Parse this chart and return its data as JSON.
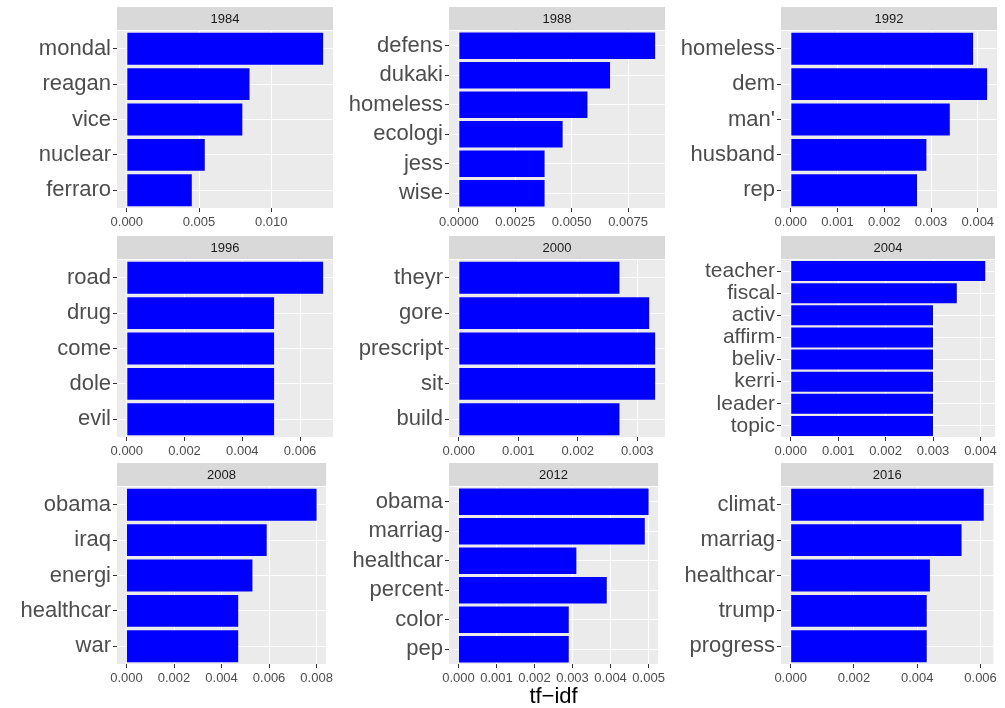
{
  "chart_data": [
    {
      "type": "bar",
      "orientation": "horizontal",
      "title": "1984",
      "categories": [
        "mondal",
        "reagan",
        "vice",
        "nuclear",
        "ferraro"
      ],
      "values": [
        0.0136,
        0.0085,
        0.008,
        0.0054,
        0.0045
      ],
      "color": "#0000ff",
      "xlim": [
        -0.00068,
        0.01428
      ],
      "xticks": [
        {
          "value": 0,
          "label": "0.000"
        },
        {
          "value": 0.005,
          "label": "0.005"
        },
        {
          "value": 0.01,
          "label": "0.010"
        }
      ],
      "grid": true
    },
    {
      "type": "bar",
      "orientation": "horizontal",
      "title": "1988",
      "categories": [
        "defens",
        "dukaki",
        "homeless",
        "ecologi",
        "jess",
        "wise"
      ],
      "values": [
        0.0087,
        0.0067,
        0.0057,
        0.0046,
        0.0038,
        0.0038
      ],
      "color": "#0000ff",
      "xlim": [
        -0.000435,
        0.009135
      ],
      "xticks": [
        {
          "value": 0,
          "label": "0.0000"
        },
        {
          "value": 0.0025,
          "label": "0.0025"
        },
        {
          "value": 0.005,
          "label": "0.0050"
        },
        {
          "value": 0.0075,
          "label": "0.0075"
        }
      ],
      "grid": true
    },
    {
      "type": "bar",
      "orientation": "horizontal",
      "title": "1992",
      "categories": [
        "homeless",
        "dem",
        "man'",
        "husband",
        "rep"
      ],
      "values": [
        0.0039,
        0.0042,
        0.0034,
        0.0029,
        0.0027
      ],
      "color": "#0000ff",
      "xlim": [
        -0.00021,
        0.00441
      ],
      "xticks": [
        {
          "value": 0,
          "label": "0.000"
        },
        {
          "value": 0.001,
          "label": "0.001"
        },
        {
          "value": 0.002,
          "label": "0.002"
        },
        {
          "value": 0.003,
          "label": "0.003"
        },
        {
          "value": 0.004,
          "label": "0.004"
        }
      ],
      "grid": true
    },
    {
      "type": "bar",
      "orientation": "horizontal",
      "title": "1996",
      "categories": [
        "road",
        "drug",
        "come",
        "dole",
        "evil"
      ],
      "values": [
        0.0068,
        0.0051,
        0.0051,
        0.0051,
        0.0051
      ],
      "color": "#0000ff",
      "xlim": [
        -0.00034,
        0.00714
      ],
      "xticks": [
        {
          "value": 0,
          "label": "0.000"
        },
        {
          "value": 0.002,
          "label": "0.002"
        },
        {
          "value": 0.004,
          "label": "0.004"
        },
        {
          "value": 0.006,
          "label": "0.006"
        }
      ],
      "grid": true
    },
    {
      "type": "bar",
      "orientation": "horizontal",
      "title": "2000",
      "categories": [
        "theyr",
        "gore",
        "prescript",
        "sit",
        "build"
      ],
      "values": [
        0.0027,
        0.0032,
        0.0033,
        0.0033,
        0.0027
      ],
      "color": "#0000ff",
      "xlim": [
        -0.000165,
        0.003465
      ],
      "xticks": [
        {
          "value": 0,
          "label": "0.000"
        },
        {
          "value": 0.001,
          "label": "0.001"
        },
        {
          "value": 0.002,
          "label": "0.002"
        },
        {
          "value": 0.003,
          "label": "0.003"
        }
      ],
      "grid": true
    },
    {
      "type": "bar",
      "orientation": "horizontal",
      "title": "2004",
      "categories": [
        "teacher",
        "fiscal",
        "activ",
        "affirm",
        "beliv",
        "kerri",
        "leader",
        "topic"
      ],
      "values": [
        0.0041,
        0.0035,
        0.003,
        0.003,
        0.003,
        0.003,
        0.003,
        0.003
      ],
      "color": "#0000ff",
      "xlim": [
        -0.000205,
        0.004305
      ],
      "xticks": [
        {
          "value": 0,
          "label": "0.000"
        },
        {
          "value": 0.001,
          "label": "0.001"
        },
        {
          "value": 0.002,
          "label": "0.002"
        },
        {
          "value": 0.003,
          "label": "0.003"
        },
        {
          "value": 0.004,
          "label": "0.004"
        }
      ],
      "grid": true
    },
    {
      "type": "bar",
      "orientation": "horizontal",
      "title": "2008",
      "categories": [
        "obama",
        "iraq",
        "energi",
        "healthcar",
        "war"
      ],
      "values": [
        0.008,
        0.0059,
        0.0053,
        0.0047,
        0.0047
      ],
      "color": "#0000ff",
      "xlim": [
        -0.0004,
        0.0084
      ],
      "xticks": [
        {
          "value": 0,
          "label": "0.000"
        },
        {
          "value": 0.002,
          "label": "0.002"
        },
        {
          "value": 0.004,
          "label": "0.004"
        },
        {
          "value": 0.006,
          "label": "0.006"
        },
        {
          "value": 0.008,
          "label": "0.008"
        }
      ],
      "grid": true
    },
    {
      "type": "bar",
      "orientation": "horizontal",
      "title": "2012",
      "xlabel": "tf−idf",
      "categories": [
        "obama",
        "marriag",
        "healthcar",
        "percent",
        "color",
        "pep"
      ],
      "values": [
        0.005,
        0.0049,
        0.0031,
        0.0039,
        0.0029,
        0.0029
      ],
      "color": "#0000ff",
      "xlim": [
        -0.00025,
        0.00525
      ],
      "xticks": [
        {
          "value": 0,
          "label": "0.000"
        },
        {
          "value": 0.001,
          "label": "0.001"
        },
        {
          "value": 0.002,
          "label": "0.002"
        },
        {
          "value": 0.003,
          "label": "0.003"
        },
        {
          "value": 0.004,
          "label": "0.004"
        },
        {
          "value": 0.005,
          "label": "0.005"
        }
      ],
      "grid": true
    },
    {
      "type": "bar",
      "orientation": "horizontal",
      "title": "2016",
      "categories": [
        "climat",
        "marriag",
        "healthcar",
        "trump",
        "progress"
      ],
      "values": [
        0.0061,
        0.0054,
        0.0044,
        0.0043,
        0.0043
      ],
      "color": "#0000ff",
      "xlim": [
        -0.000305,
        0.006405
      ],
      "xticks": [
        {
          "value": 0,
          "label": "0.000"
        },
        {
          "value": 0.002,
          "label": "0.002"
        },
        {
          "value": 0.004,
          "label": "0.004"
        },
        {
          "value": 0.006,
          "label": "0.006"
        }
      ],
      "grid": true
    }
  ]
}
